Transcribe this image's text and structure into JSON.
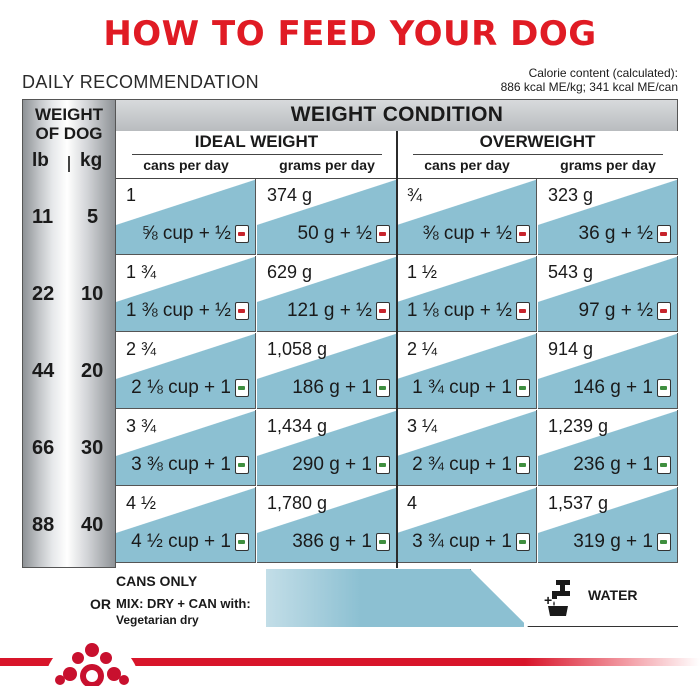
{
  "title": "HOW TO FEED YOUR DOG",
  "daily": "DAILY RECOMMENDATION",
  "calorie": {
    "line1": "Calorie content (calculated):",
    "line2": "886 kcal ME/kg; 341 kcal ME/can"
  },
  "table": {
    "weight_head_1": "WEIGHT",
    "weight_head_2": "OF DOG",
    "lb": "lb",
    "kg": "kg",
    "condition": "WEIGHT CONDITION",
    "ideal": "IDEAL WEIGHT",
    "over": "OVERWEIGHT",
    "cans_per_day": "cans per day",
    "grams_per_day": "grams per day",
    "rows": [
      {
        "lb": "11",
        "kg": "5",
        "ideal_cans": "1",
        "ideal_cans_mix": "⅝ cup + ½",
        "ideal_grams": "374 g",
        "ideal_grams_mix": "50 g + ½",
        "over_cans": "¾",
        "over_cans_mix": "⅜ cup + ½",
        "over_grams": "323 g",
        "over_grams_mix": "36 g + ½"
      },
      {
        "lb": "22",
        "kg": "10",
        "ideal_cans": "1 ¾",
        "ideal_cans_mix": "1 ⅜ cup + ½",
        "ideal_grams": "629 g",
        "ideal_grams_mix": "121 g + ½",
        "over_cans": "1 ½",
        "over_cans_mix": "1 ⅛ cup + ½",
        "over_grams": "543 g",
        "over_grams_mix": "97 g + ½"
      },
      {
        "lb": "44",
        "kg": "20",
        "ideal_cans": "2 ¾",
        "ideal_cans_mix": "2 ⅛ cup + 1",
        "ideal_grams": "1,058 g",
        "ideal_grams_mix": "186 g + 1",
        "over_cans": "2 ¼",
        "over_cans_mix": "1 ¾ cup + 1",
        "over_grams": "914 g",
        "over_grams_mix": "146 g + 1"
      },
      {
        "lb": "66",
        "kg": "30",
        "ideal_cans": "3 ¾",
        "ideal_cans_mix": "3 ⅜ cup + 1",
        "ideal_grams": "1,434 g",
        "ideal_grams_mix": "290 g + 1",
        "over_cans": "3 ¼",
        "over_cans_mix": "2 ¾ cup + 1",
        "over_grams": "1,239 g",
        "over_grams_mix": "236 g + 1"
      },
      {
        "lb": "88",
        "kg": "40",
        "ideal_cans": "4 ½",
        "ideal_cans_mix": "4 ½ cup + 1",
        "ideal_grams": "1,780 g",
        "ideal_grams_mix": "386 g + 1",
        "over_cans": "4",
        "over_cans_mix": "3 ¾ cup + 1",
        "over_grams": "1,537 g",
        "over_grams_mix": "319 g + 1"
      }
    ]
  },
  "legend": {
    "cans_only": "CANS ONLY",
    "or": "OR",
    "mix": "MIX: DRY + CAN with:",
    "veg": "Vegetarian dry",
    "water": "WATER",
    "plus": "+"
  },
  "icons": {
    "can_half": "can-half-icon",
    "can_full": "can-full-icon",
    "water_tap": "water-tap-icon",
    "logo": "royal-canin-crown-logo"
  },
  "colors": {
    "title_red": "#e01b24",
    "cell_blue": "#8cc0d2",
    "brand_red": "#d8152a"
  }
}
